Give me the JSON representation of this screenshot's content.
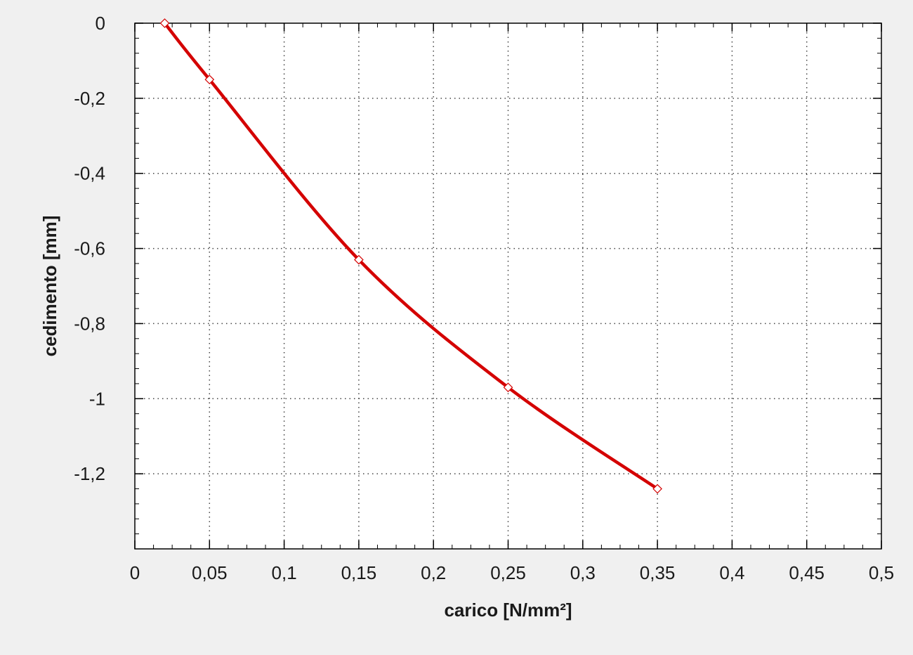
{
  "chart_data": {
    "type": "line",
    "title": "",
    "xlabel": "carico [N/mm²]",
    "ylabel": "cedimento [mm]",
    "xlim": [
      0,
      0.5
    ],
    "ylim": [
      -1.4,
      0
    ],
    "x_ticks": [
      0,
      0.05,
      0.1,
      0.15,
      0.2,
      0.25,
      0.3,
      0.35,
      0.4,
      0.45,
      0.5
    ],
    "x_tick_labels": [
      "0",
      "0,05",
      "0,1",
      "0,15",
      "0,2",
      "0,25",
      "0,3",
      "0,35",
      "0,4",
      "0,45",
      "0,5"
    ],
    "y_ticks": [
      0,
      -0.2,
      -0.4,
      -0.6,
      -0.8,
      -1,
      -1.2
    ],
    "y_tick_labels": [
      "0",
      "-0,2",
      "-0,4",
      "-0,6",
      "-0,8",
      "-1",
      "-1,2"
    ],
    "grid": true,
    "series": [
      {
        "x": [
          0.02,
          0.05,
          0.15,
          0.25,
          0.35
        ],
        "y": [
          0,
          -0.15,
          -0.63,
          -0.97,
          -1.24
        ],
        "color": "#d40000",
        "marker": "diamond"
      }
    ],
    "background": "#f0f0f0",
    "plot_background": "#ffffff",
    "grid_color": "#444444",
    "axis_color": "#000000"
  }
}
